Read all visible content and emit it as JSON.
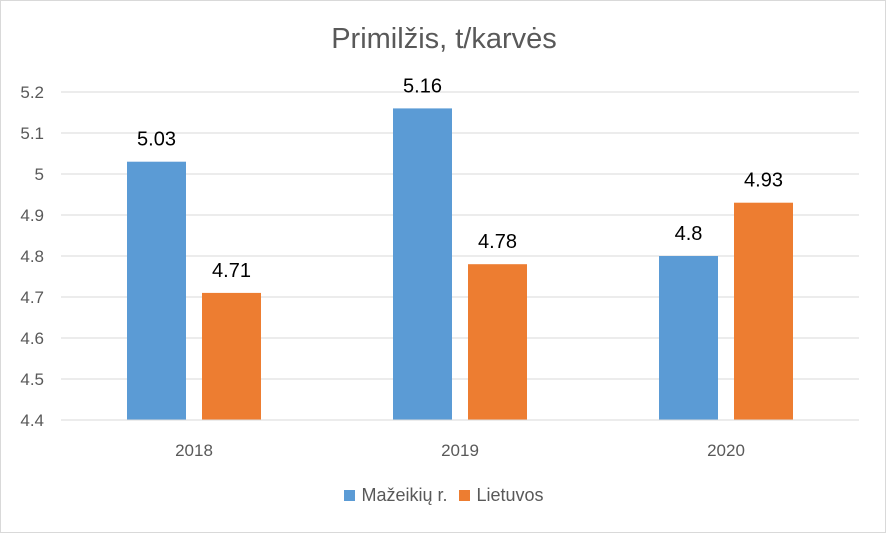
{
  "chart_data": {
    "type": "bar",
    "title": "Primilžis, t/karvės",
    "xlabel": "",
    "ylabel": "",
    "categories": [
      "2018",
      "2019",
      "2020"
    ],
    "series": [
      {
        "name": "Mažeikių r.",
        "color": "#5b9bd5",
        "values": [
          5.03,
          5.16,
          4.8
        ]
      },
      {
        "name": "Lietuvos",
        "color": "#ed7d31",
        "values": [
          4.71,
          4.78,
          4.93
        ]
      }
    ],
    "ylim": [
      4.4,
      5.2
    ],
    "yticks": [
      "4.4",
      "4.5",
      "4.6",
      "4.7",
      "4.8",
      "4.9",
      "5",
      "5.1",
      "5.2"
    ],
    "data_labels": [
      [
        "5.03",
        "5.16",
        "4.8"
      ],
      [
        "4.71",
        "4.78",
        "4.93"
      ]
    ],
    "grid": true,
    "legend_position": "bottom"
  }
}
